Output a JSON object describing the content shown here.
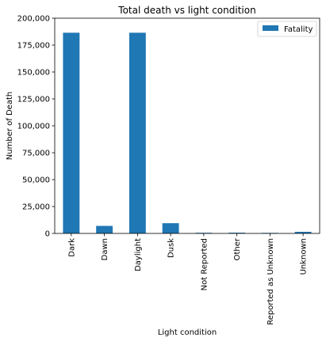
{
  "chart_data": {
    "type": "bar",
    "title": "Total death vs light condition",
    "xlabel": "Light condition",
    "ylabel": "Number of Death",
    "ylim": [
      0,
      200000
    ],
    "yticks": [
      0,
      25000,
      50000,
      75000,
      100000,
      125000,
      150000,
      175000,
      200000
    ],
    "ytick_labels": [
      "0",
      "25,000",
      "50,000",
      "75,000",
      "100,000",
      "125,000",
      "150,000",
      "175,000",
      "200,000"
    ],
    "categories": [
      "Dark",
      "Dawn",
      "Daylight",
      "Dusk",
      "Not Reported",
      "Other",
      "Reported as Unknown",
      "Unknown"
    ],
    "series": [
      {
        "name": "Fatality",
        "color": "#1f77b4",
        "values": [
          186500,
          7000,
          186500,
          9500,
          600,
          700,
          500,
          1500
        ]
      }
    ],
    "legend": {
      "position": "top-right"
    },
    "grid": false
  }
}
